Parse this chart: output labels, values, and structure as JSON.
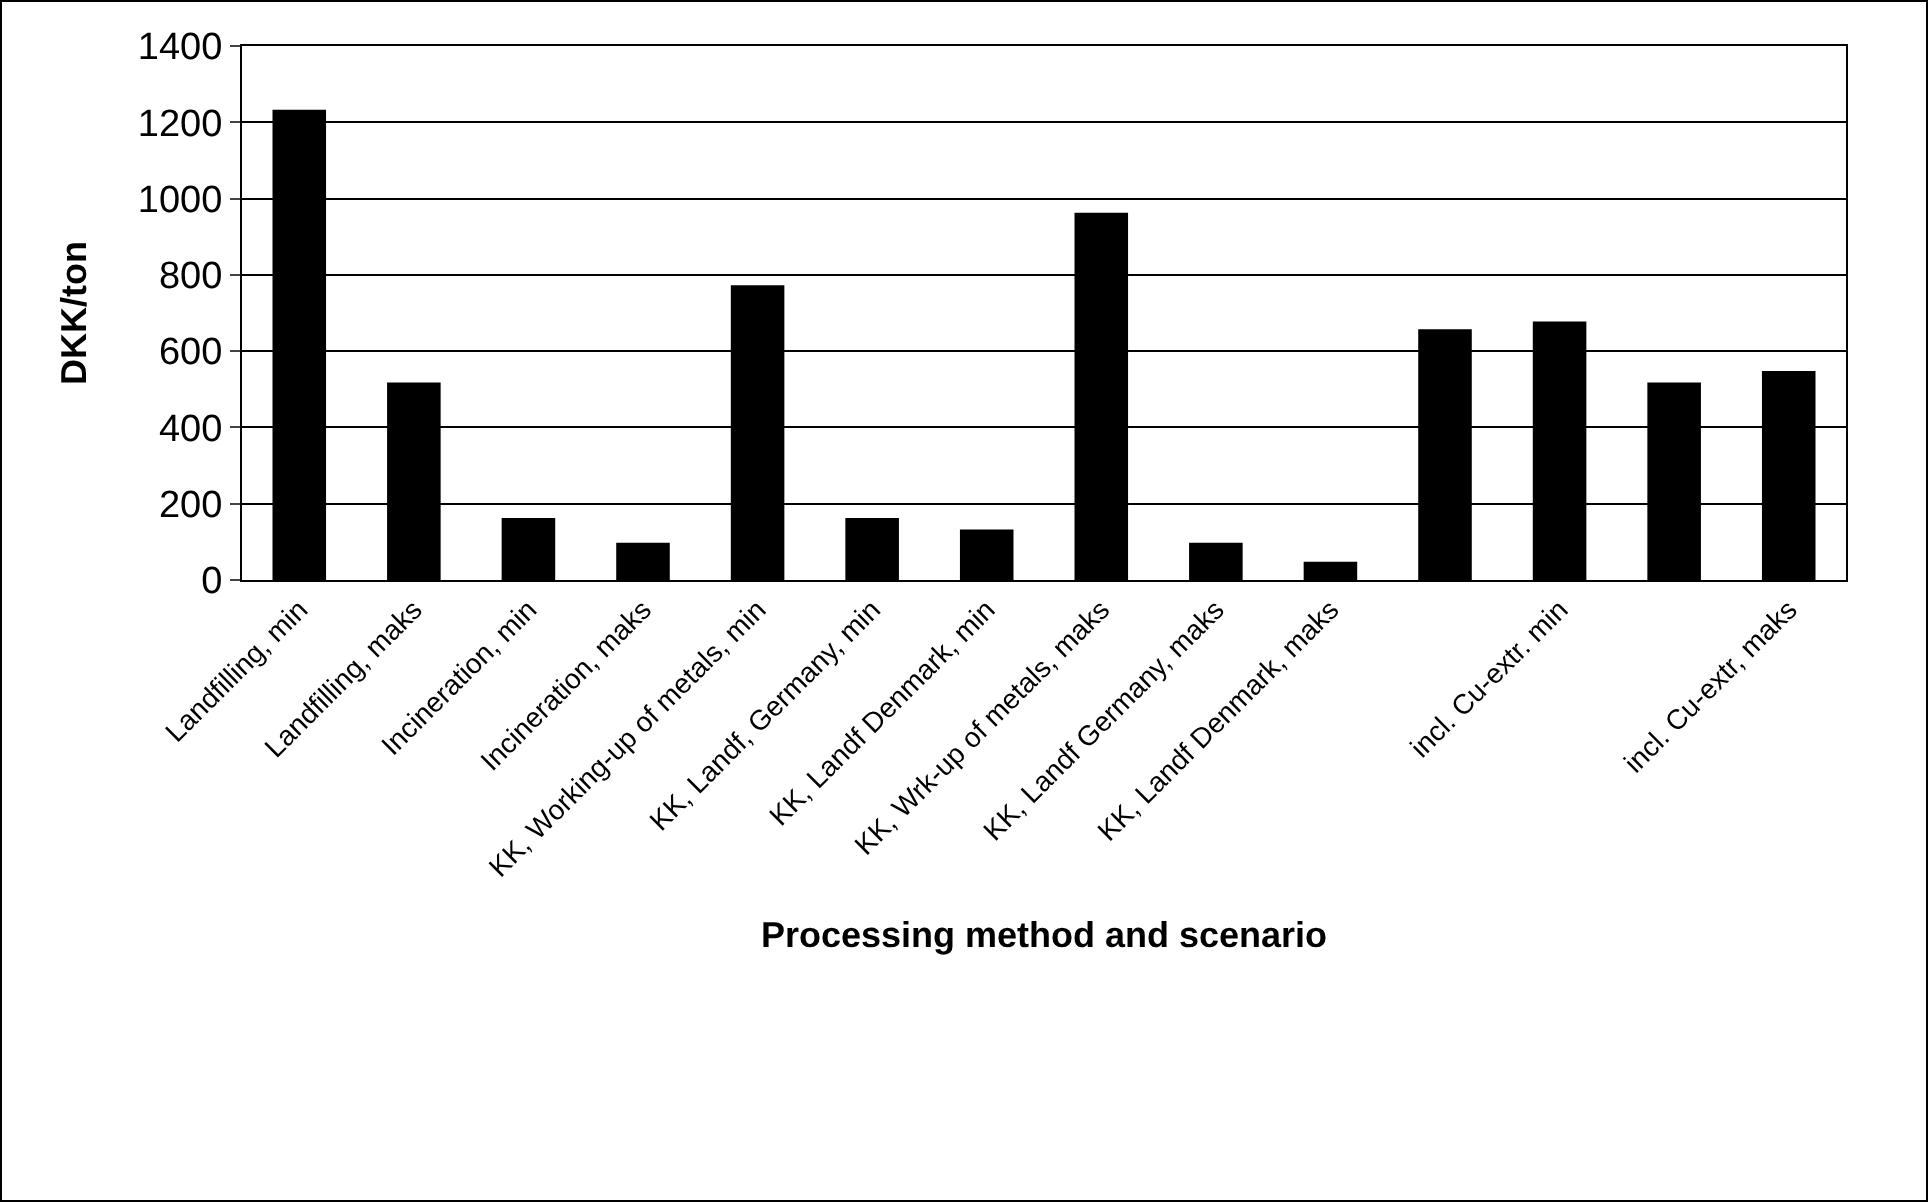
{
  "chart_data": {
    "type": "bar",
    "xlabel": "Processing method and scenario",
    "ylabel": "DKK/ton",
    "categories": [
      "Landfilling, min",
      "Landfilling, maks",
      "Incineration, min",
      "Incineration, maks",
      "KK, Working-up of metals, min",
      "KK, Landf, Germany, min",
      "KK, Landf Denmark, min",
      "KK, Wrk-up of metals, maks",
      "KK, Landf Germany, maks",
      "KK, Landf Denmark, maks",
      null,
      "incl. Cu-extr. min",
      null,
      "incl. Cu-extr, maks"
    ],
    "values": [
      1230,
      515,
      160,
      95,
      770,
      160,
      130,
      960,
      95,
      45,
      655,
      675,
      515,
      545
    ],
    "color": "#000000",
    "ylim": [
      0,
      1400
    ],
    "yticks": [
      0,
      200,
      400,
      600,
      800,
      1000,
      1200,
      1400
    ],
    "grid": "y",
    "legend": false
  }
}
